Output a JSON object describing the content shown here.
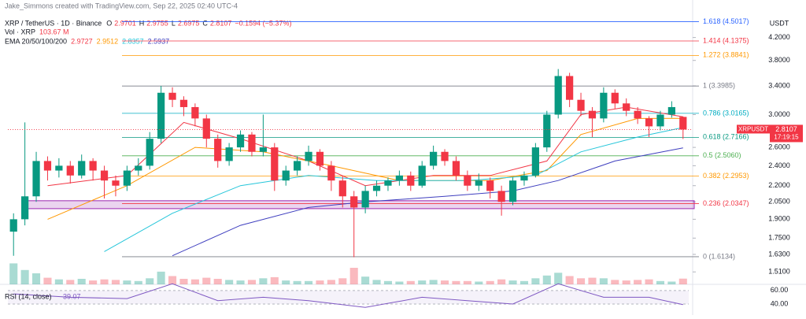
{
  "header": {
    "credit": "Jake_Simmons created with TradingView.com, Sep 22, 2025 02:40 UTC-4",
    "symbol": "XRP / TetherUS · 1D · Binance",
    "ohlc_keys": [
      "O",
      "H",
      "L",
      "C"
    ],
    "change": "−0.1594 (−5.37%)",
    "volume_label": "Vol · XRP",
    "volume_value": "103.67 M",
    "ema_label": "EMA 20/50/100/200"
  },
  "chart_data": {
    "type": "candlestick",
    "unit": "USDT",
    "symbol_tag": "XRPUSDT",
    "countdown": "17:19:15",
    "log_scale": true,
    "ylim": [
      1.45,
      4.65
    ],
    "yticks": [
      {
        "value": 4.2,
        "label": "4.2000"
      },
      {
        "value": 3.8,
        "label": "3.8000"
      },
      {
        "value": 3.4,
        "label": "3.4000"
      },
      {
        "value": 3.0,
        "label": "3.0000"
      },
      {
        "value": 2.6,
        "label": "2.6000"
      },
      {
        "value": 2.4,
        "label": "2.4000"
      },
      {
        "value": 2.2,
        "label": "2.2000"
      },
      {
        "value": 2.05,
        "label": "2.0500"
      },
      {
        "value": 1.9,
        "label": "1.9000"
      },
      {
        "value": 1.75,
        "label": "1.7500"
      },
      {
        "value": 1.63,
        "label": "1.6300"
      },
      {
        "value": 1.51,
        "label": "1.5100"
      }
    ],
    "colors": {
      "up": "#089981",
      "down": "#f23645"
    },
    "ohlc": [
      [
        1.8,
        1.95,
        1.62,
        1.9
      ],
      [
        1.9,
        2.9,
        1.85,
        2.1
      ],
      [
        2.1,
        2.55,
        2.05,
        2.45
      ],
      [
        2.45,
        2.5,
        2.25,
        2.35
      ],
      [
        2.35,
        2.48,
        2.28,
        2.4
      ],
      [
        2.4,
        2.45,
        2.22,
        2.3
      ],
      [
        2.3,
        2.52,
        2.27,
        2.45
      ],
      [
        2.45,
        2.48,
        2.25,
        2.35
      ],
      [
        2.35,
        2.4,
        2.08,
        2.25
      ],
      [
        2.25,
        2.3,
        2.1,
        2.2
      ],
      [
        2.2,
        2.4,
        2.15,
        2.35
      ],
      [
        2.35,
        2.48,
        2.3,
        2.4
      ],
      [
        2.4,
        2.78,
        2.36,
        2.7
      ],
      [
        2.7,
        3.4,
        2.65,
        3.3
      ],
      [
        3.3,
        3.38,
        3.1,
        3.2
      ],
      [
        3.2,
        3.25,
        2.98,
        3.1
      ],
      [
        3.1,
        3.15,
        2.85,
        2.95
      ],
      [
        2.95,
        3.0,
        2.6,
        2.7
      ],
      [
        2.7,
        2.75,
        2.38,
        2.45
      ],
      [
        2.45,
        2.65,
        2.4,
        2.6
      ],
      [
        2.6,
        2.8,
        2.55,
        2.75
      ],
      [
        2.75,
        2.78,
        2.5,
        2.55
      ],
      [
        2.55,
        3.0,
        2.5,
        2.6
      ],
      [
        2.6,
        2.65,
        2.15,
        2.25
      ],
      [
        2.25,
        2.4,
        2.2,
        2.35
      ],
      [
        2.35,
        2.5,
        2.3,
        2.45
      ],
      [
        2.45,
        2.62,
        2.4,
        2.55
      ],
      [
        2.55,
        2.58,
        2.35,
        2.4
      ],
      [
        2.4,
        2.45,
        2.15,
        2.25
      ],
      [
        2.25,
        2.3,
        2.0,
        2.1
      ],
      [
        2.1,
        2.15,
        1.61,
        2.0
      ],
      [
        2.0,
        2.2,
        1.95,
        2.15
      ],
      [
        2.15,
        2.25,
        2.1,
        2.2
      ],
      [
        2.2,
        2.28,
        2.15,
        2.25
      ],
      [
        2.25,
        2.35,
        2.2,
        2.3
      ],
      [
        2.3,
        2.34,
        2.15,
        2.2
      ],
      [
        2.2,
        2.45,
        2.18,
        2.4
      ],
      [
        2.4,
        2.62,
        2.36,
        2.55
      ],
      [
        2.55,
        2.58,
        2.4,
        2.45
      ],
      [
        2.45,
        2.5,
        2.25,
        2.3
      ],
      [
        2.3,
        2.35,
        2.15,
        2.2
      ],
      [
        2.2,
        2.32,
        2.15,
        2.25
      ],
      [
        2.25,
        2.28,
        2.08,
        2.15
      ],
      [
        2.15,
        2.2,
        1.93,
        2.05
      ],
      [
        2.05,
        2.28,
        2.02,
        2.25
      ],
      [
        2.25,
        2.34,
        2.2,
        2.3
      ],
      [
        2.3,
        2.65,
        2.28,
        2.6
      ],
      [
        2.6,
        3.05,
        2.55,
        3.0
      ],
      [
        3.0,
        3.66,
        2.95,
        3.55
      ],
      [
        3.55,
        3.6,
        3.1,
        3.2
      ],
      [
        3.2,
        3.3,
        2.98,
        3.05
      ],
      [
        3.05,
        3.1,
        2.72,
        2.95
      ],
      [
        2.95,
        3.38,
        2.9,
        3.3
      ],
      [
        3.3,
        3.35,
        3.08,
        3.15
      ],
      [
        3.15,
        3.22,
        2.98,
        3.05
      ],
      [
        3.05,
        3.1,
        2.88,
        2.95
      ],
      [
        2.95,
        2.98,
        2.72,
        2.85
      ],
      [
        2.85,
        3.05,
        2.8,
        3.0
      ],
      [
        3.0,
        3.18,
        2.96,
        3.1
      ],
      [
        2.9701,
        2.9755,
        2.6975,
        2.8107
      ]
    ],
    "volume": [
      380,
      260,
      200,
      120,
      90,
      80,
      100,
      70,
      90,
      80,
      70,
      60,
      110,
      230,
      150,
      100,
      90,
      120,
      100,
      80,
      70,
      80,
      110,
      130,
      70,
      60,
      60,
      70,
      80,
      110,
      300,
      140,
      80,
      60,
      50,
      60,
      70,
      80,
      70,
      60,
      60,
      50,
      60,
      90,
      70,
      60,
      110,
      160,
      210,
      150,
      110,
      120,
      110,
      80,
      70,
      80,
      90,
      60,
      50,
      103.67
    ],
    "vlim": [
      0,
      400
    ],
    "ema": [
      {
        "color": "#f23645",
        "x": [
          3,
          10,
          15,
          20,
          26,
          31,
          37,
          42,
          47,
          50,
          54,
          59
        ],
        "values": [
          2.2,
          2.3,
          2.9,
          2.7,
          2.45,
          2.2,
          2.3,
          2.3,
          2.45,
          3.0,
          3.1,
          2.9727
        ]
      },
      {
        "color": "#ff9800",
        "x": [
          3,
          10,
          16,
          22,
          28,
          34,
          42,
          47,
          50,
          55,
          59
        ],
        "values": [
          1.9,
          2.2,
          2.6,
          2.55,
          2.4,
          2.25,
          2.25,
          2.35,
          2.75,
          2.95,
          2.9512
        ]
      },
      {
        "color": "#26c6da",
        "x": [
          8,
          14,
          20,
          26,
          32,
          40,
          46,
          50,
          55,
          59
        ],
        "values": [
          1.65,
          1.95,
          2.2,
          2.3,
          2.25,
          2.25,
          2.3,
          2.55,
          2.72,
          2.8357
        ]
      },
      {
        "color": "#3f3fbf",
        "x": [
          14,
          20,
          26,
          31,
          38,
          44,
          48,
          53,
          59
        ],
        "values": [
          1.62,
          1.85,
          2.0,
          2.05,
          2.1,
          2.15,
          2.25,
          2.45,
          2.5937
        ]
      }
    ],
    "fib": [
      {
        "label": "1.618 (4.5017)",
        "value": 4.5017,
        "color": "#2962ff"
      },
      {
        "label": "1.414 (4.1375)",
        "value": 4.1375,
        "color": "#f23645"
      },
      {
        "label": "1.272 (3.8841)",
        "value": 3.8841,
        "color": "#ff9800"
      },
      {
        "label": "1 (3.3985)",
        "value": 3.3985,
        "color": "#787b86"
      },
      {
        "label": "0.786 (3.0165)",
        "value": 3.0165,
        "color": "#00acc1"
      },
      {
        "label": "0.618 (2.7166)",
        "value": 2.7166,
        "color": "#089981"
      },
      {
        "label": "0.5 (2.5060)",
        "value": 2.506,
        "color": "#4caf50"
      },
      {
        "label": "0.382 (2.2953)",
        "value": 2.2953,
        "color": "#ff9800"
      },
      {
        "label": "0.236 (2.0347)",
        "value": 2.0347,
        "color": "#f23645"
      },
      {
        "label": "0 (1.6134)",
        "value": 1.6134,
        "color": "#787b86"
      }
    ],
    "zone": {
      "range": [
        1.99,
        2.06
      ],
      "color": "#9c27b0"
    },
    "rsi": {
      "title": "RSI (14, close)",
      "color": "#7e57c2",
      "ylim": [
        26,
        68
      ],
      "yticks": [
        {
          "value": 60,
          "label": "60.00"
        },
        {
          "value": 40,
          "label": "40.00"
        }
      ],
      "x": [
        0,
        5,
        10,
        14,
        18,
        22,
        26,
        31,
        36,
        40,
        44,
        48,
        52,
        56,
        59
      ],
      "values": [
        55,
        50,
        48,
        70,
        45,
        50,
        45,
        35,
        50,
        45,
        40,
        70,
        50,
        50,
        39.07
      ]
    }
  }
}
